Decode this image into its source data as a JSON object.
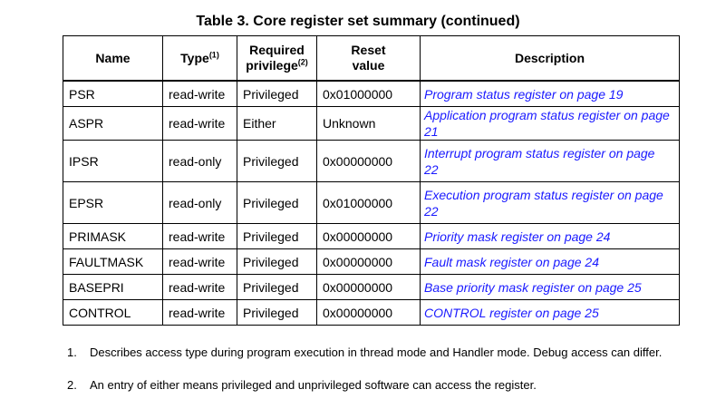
{
  "title": "Table 3. Core register set summary (continued)",
  "headers": {
    "name": "Name",
    "type": "Type",
    "type_sup": "(1)",
    "priv_line1": "Required",
    "priv_line2": "privilege",
    "priv_sup": "(2)",
    "reset_line1": "Reset",
    "reset_line2": "value",
    "description": "Description"
  },
  "rows": [
    {
      "name": "PSR",
      "type": "read-write",
      "privilege": "Privileged",
      "reset": "0x01000000",
      "description": "Program status register on page 19"
    },
    {
      "name": "ASPR",
      "type": "read-write",
      "privilege": "Either",
      "reset": "Unknown",
      "description": "Application program status register on page 21"
    },
    {
      "name": "IPSR",
      "type": "read-only",
      "privilege": "Privileged",
      "reset": "0x00000000",
      "description": "Interrupt program status register on page 22"
    },
    {
      "name": "EPSR",
      "type": "read-only",
      "privilege": "Privileged",
      "reset": "0x01000000",
      "description": "Execution program status register on page 22"
    },
    {
      "name": "PRIMASK",
      "type": "read-write",
      "privilege": "Privileged",
      "reset": "0x00000000",
      "description": "Priority mask register on page 24"
    },
    {
      "name": "FAULTMASK",
      "type": "read-write",
      "privilege": "Privileged",
      "reset": "0x00000000",
      "description": "Fault mask register on page 24"
    },
    {
      "name": "BASEPRI",
      "type": "read-write",
      "privilege": "Privileged",
      "reset": "0x00000000",
      "description": "Base priority mask register on page 25"
    },
    {
      "name": "CONTROL",
      "type": "read-write",
      "privilege": "Privileged",
      "reset": "0x00000000",
      "description": "CONTROL register on page 25"
    }
  ],
  "footnotes": [
    {
      "num": "1.",
      "text": "Describes access type during program execution in thread mode and Handler mode. Debug access can differ."
    },
    {
      "num": "2.",
      "text": "An entry of either means privileged and unprivileged software can access the register."
    }
  ],
  "colors": {
    "link": "#1a1aff",
    "text": "#000000",
    "border": "#000000"
  }
}
